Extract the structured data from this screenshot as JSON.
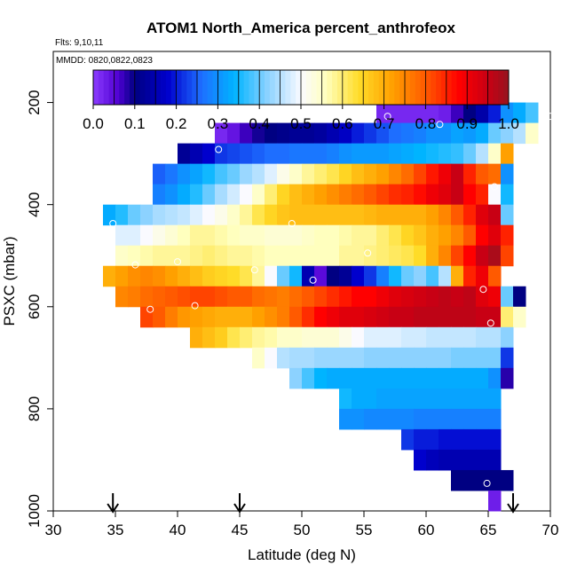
{
  "chart_data": {
    "type": "heatmap",
    "title": "ATOM1 North_America percent_anthrofeox",
    "flts_label": "Flts: 9,10,11",
    "mmdd_label": "MMDD: 0820,0822,0823",
    "xlabel": "Latitude (deg N)",
    "ylabel": "PSXC (mbar)",
    "xlim": [
      30,
      70
    ],
    "ylim": [
      1000,
      100
    ],
    "x_ticks": [
      "30",
      "35",
      "40",
      "45",
      "50",
      "55",
      "60",
      "65",
      "70"
    ],
    "y_ticks": [
      "200",
      "400",
      "600",
      "800",
      "1000"
    ],
    "colorbar": {
      "min": 0.0,
      "max": 1.0,
      "ticks": [
        "0.0",
        "0.1",
        "0.2",
        "0.3",
        "0.4",
        "0.5",
        "0.6",
        "0.7",
        "0.8",
        "0.9",
        "1.0"
      ]
    },
    "cell_size": {
      "lat_deg": 1,
      "psxc_mbar": 40
    },
    "rows": [
      {
        "psxc": 220,
        "lat_start": 56,
        "values": [
          0.02,
          0.02,
          0.02,
          0.02,
          0.02,
          0.03,
          0.07,
          0.1,
          0.14,
          0.2,
          0.3,
          0.33,
          0.38
        ]
      },
      {
        "psxc": 260,
        "lat_start": 43,
        "values": [
          0.02,
          0.04,
          0.07,
          0.09,
          0.1,
          0.11,
          0.12,
          0.12,
          0.13,
          0.15,
          0.17,
          0.2,
          0.22,
          0.24,
          0.26,
          0.27,
          0.28,
          0.3,
          0.3,
          0.32,
          0.31,
          0.33,
          0.4,
          0.42,
          0.45,
          0.55
        ]
      },
      {
        "psxc": 300,
        "lat_start": 40,
        "values": [
          0.12,
          0.15,
          0.18,
          0.22,
          0.23,
          0.24,
          0.25,
          0.26,
          0.26,
          0.27,
          0.27,
          0.27,
          0.28,
          0.3,
          0.31,
          0.31,
          0.31,
          0.32,
          0.33,
          0.34,
          0.35,
          0.36,
          0.37,
          0.4,
          0.45,
          0.55,
          0.72
        ]
      },
      {
        "psxc": 340,
        "lat_start": 38,
        "values": [
          0.25,
          0.27,
          0.3,
          0.32,
          0.35,
          0.38,
          0.4,
          0.43,
          0.45,
          0.48,
          0.52,
          0.55,
          0.58,
          0.6,
          0.62,
          0.65,
          0.68,
          0.7,
          0.72,
          0.75,
          0.78,
          0.82,
          0.86,
          0.9,
          0.95,
          0.85,
          0.8,
          0.78,
          0.3
        ]
      },
      {
        "psxc": 380,
        "lat_start": 38,
        "values": [
          0.28,
          0.3,
          0.33,
          0.36,
          0.4,
          0.44,
          0.47,
          0.5,
          0.55,
          0.6,
          0.65,
          0.68,
          0.7,
          0.72,
          0.74,
          0.76,
          0.78,
          0.8,
          0.82,
          0.84,
          0.85,
          0.87,
          0.9,
          0.92,
          0.95,
          0.88,
          0.85,
          0.5,
          0.35
        ]
      },
      {
        "psxc": 420,
        "lat_start": 34,
        "values": [
          0.33,
          0.36,
          0.4,
          0.42,
          0.44,
          0.45,
          0.46,
          0.48,
          0.5,
          0.52,
          0.55,
          0.58,
          0.62,
          0.65,
          0.67,
          0.68,
          0.68,
          0.68,
          0.68,
          0.68,
          0.68,
          0.69,
          0.7,
          0.7,
          0.7,
          0.7,
          0.72,
          0.75,
          0.8,
          0.85,
          0.92,
          0.95,
          0.4
        ]
      },
      {
        "psxc": 460,
        "lat_start": 35,
        "values": [
          0.48,
          0.48,
          0.5,
          0.52,
          0.54,
          0.56,
          0.58,
          0.58,
          0.57,
          0.56,
          0.55,
          0.55,
          0.54,
          0.54,
          0.54,
          0.55,
          0.56,
          0.56,
          0.57,
          0.58,
          0.58,
          0.6,
          0.62,
          0.65,
          0.67,
          0.7,
          0.72,
          0.75,
          0.8,
          0.88,
          0.92,
          0.85
        ]
      },
      {
        "psxc": 500,
        "lat_start": 35,
        "values": [
          0.55,
          0.56,
          0.57,
          0.58,
          0.58,
          0.58,
          0.59,
          0.6,
          0.59,
          0.58,
          0.58,
          0.57,
          0.56,
          0.56,
          0.56,
          0.56,
          0.56,
          0.56,
          0.58,
          0.58,
          0.59,
          0.6,
          0.61,
          0.62,
          0.64,
          0.7,
          0.75,
          0.82,
          0.88,
          0.95,
          0.98,
          0.82
        ]
      },
      {
        "psxc": 540,
        "lat_start": 34,
        "values": [
          0.7,
          0.72,
          0.74,
          0.75,
          0.74,
          0.72,
          0.7,
          0.68,
          0.66,
          0.65,
          0.64,
          0.62,
          0.58,
          0.5,
          0.4,
          0.35,
          0.15,
          0.05,
          0.1,
          0.12,
          0.18,
          0.22,
          0.28,
          0.35,
          0.4,
          0.42,
          0.38,
          0.45,
          0.7,
          0.85,
          0.9,
          0.8
        ]
      },
      {
        "psxc": 580,
        "lat_start": 35,
        "values": [
          0.75,
          0.76,
          0.78,
          0.79,
          0.8,
          0.81,
          0.82,
          0.82,
          0.81,
          0.8,
          0.8,
          0.78,
          0.77,
          0.76,
          0.78,
          0.8,
          0.82,
          0.84,
          0.86,
          0.88,
          0.88,
          0.9,
          0.92,
          0.93,
          0.94,
          0.95,
          0.96,
          0.95,
          0.96,
          0.92,
          0.9,
          0.4,
          0.1
        ]
      },
      {
        "psxc": 620,
        "lat_start": 37,
        "values": [
          0.82,
          0.8,
          0.76,
          0.73,
          0.72,
          0.71,
          0.7,
          0.7,
          0.7,
          0.72,
          0.74,
          0.76,
          0.8,
          0.84,
          0.88,
          0.9,
          0.92,
          0.92,
          0.93,
          0.94,
          0.95,
          0.95,
          0.96,
          0.96,
          0.96,
          0.96,
          0.96,
          0.95,
          0.95,
          0.6,
          0.55
        ]
      },
      {
        "psxc": 660,
        "lat_start": 41,
        "values": [
          0.7,
          0.68,
          0.66,
          0.62,
          0.6,
          0.58,
          0.57,
          0.55,
          0.55,
          0.54,
          0.54,
          0.54,
          0.52,
          0.5,
          0.48,
          0.48,
          0.48,
          0.47,
          0.47,
          0.46,
          0.46,
          0.46,
          0.46,
          0.45,
          0.45,
          0.42
        ]
      },
      {
        "psxc": 700,
        "lat_start": 46,
        "values": [
          0.55,
          0.5,
          0.45,
          0.44,
          0.44,
          0.43,
          0.43,
          0.43,
          0.43,
          0.42,
          0.42,
          0.42,
          0.42,
          0.42,
          0.42,
          0.42,
          0.41,
          0.41,
          0.41,
          0.41,
          0.22
        ]
      },
      {
        "psxc": 740,
        "lat_start": 49,
        "values": [
          0.42,
          0.38,
          0.34,
          0.33,
          0.33,
          0.33,
          0.33,
          0.33,
          0.33,
          0.33,
          0.33,
          0.33,
          0.33,
          0.33,
          0.33,
          0.33,
          0.3,
          0.08
        ]
      },
      {
        "psxc": 780,
        "lat_start": 53,
        "values": [
          0.35,
          0.33,
          0.33,
          0.32,
          0.32,
          0.32,
          0.32,
          0.32,
          0.32,
          0.32,
          0.32,
          0.32,
          0.32
        ]
      },
      {
        "psxc": 820,
        "lat_start": 53,
        "values": [
          0.3,
          0.3,
          0.29,
          0.29,
          0.29,
          0.29,
          0.28,
          0.28,
          0.28,
          0.28,
          0.28,
          0.28,
          0.28
        ]
      },
      {
        "psxc": 860,
        "lat_start": 58,
        "values": [
          0.22,
          0.2,
          0.2,
          0.19,
          0.19,
          0.19,
          0.19,
          0.19
        ]
      },
      {
        "psxc": 900,
        "lat_start": 59,
        "values": [
          0.18,
          0.16,
          0.15,
          0.15,
          0.15,
          0.15,
          0.15
        ]
      },
      {
        "psxc": 940,
        "lat_start": 62,
        "values": [
          0.1,
          0.1,
          0.1,
          0.1,
          0.1
        ]
      },
      {
        "psxc": 980,
        "lat_start": 65,
        "values": [
          0.03
        ]
      }
    ],
    "sample_points": [
      {
        "lat": 56.9,
        "psxc": 227
      },
      {
        "lat": 61.1,
        "psxc": 243
      },
      {
        "lat": 70.0,
        "psxc": 227
      },
      {
        "lat": 43.3,
        "psxc": 292
      },
      {
        "lat": 65.5,
        "psxc": 365
      },
      {
        "lat": 34.8,
        "psxc": 437
      },
      {
        "lat": 49.2,
        "psxc": 437
      },
      {
        "lat": 55.3,
        "psxc": 495
      },
      {
        "lat": 36.6,
        "psxc": 518
      },
      {
        "lat": 40.0,
        "psxc": 512
      },
      {
        "lat": 46.2,
        "psxc": 528
      },
      {
        "lat": 50.9,
        "psxc": 548
      },
      {
        "lat": 64.6,
        "psxc": 566
      },
      {
        "lat": 37.8,
        "psxc": 605
      },
      {
        "lat": 41.4,
        "psxc": 598
      },
      {
        "lat": 65.2,
        "psxc": 632
      },
      {
        "lat": 64.9,
        "psxc": 946
      }
    ],
    "flight_markers_lat": [
      34.8,
      45.0,
      67.0
    ]
  }
}
